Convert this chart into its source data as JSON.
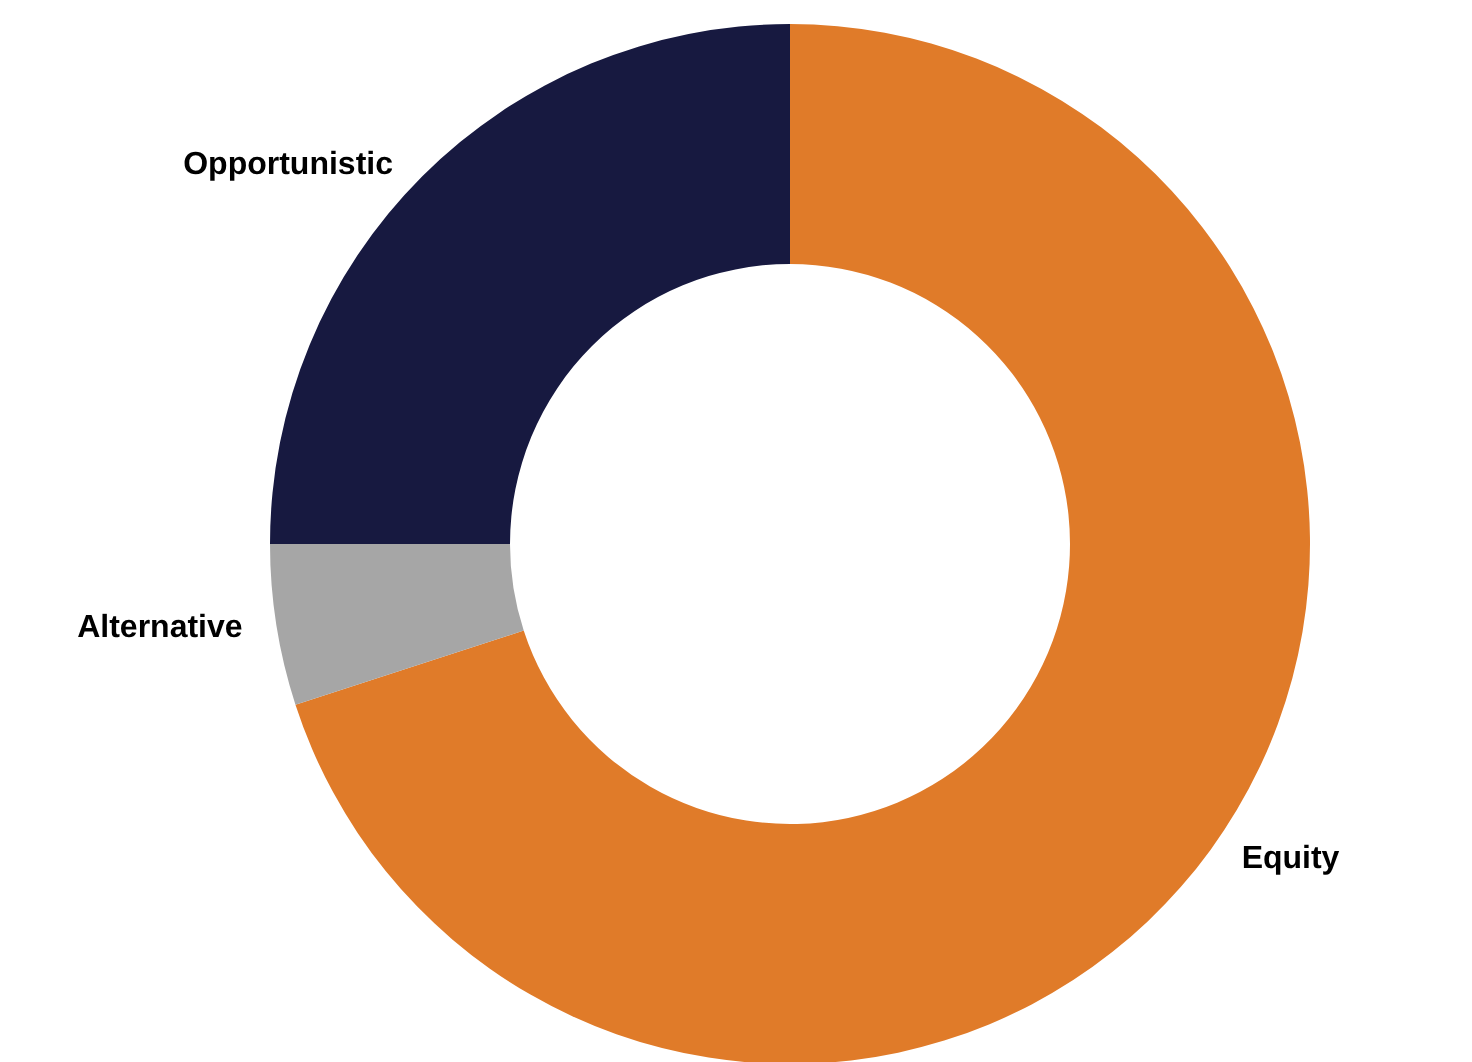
{
  "chart_data": {
    "type": "donut",
    "categories": [
      "Equity",
      "Alternative",
      "Opportunistic"
    ],
    "values": [
      70,
      5,
      25
    ],
    "colors": [
      "#e07b29",
      "#a6a6a6",
      "#171940"
    ],
    "legend": false
  }
}
